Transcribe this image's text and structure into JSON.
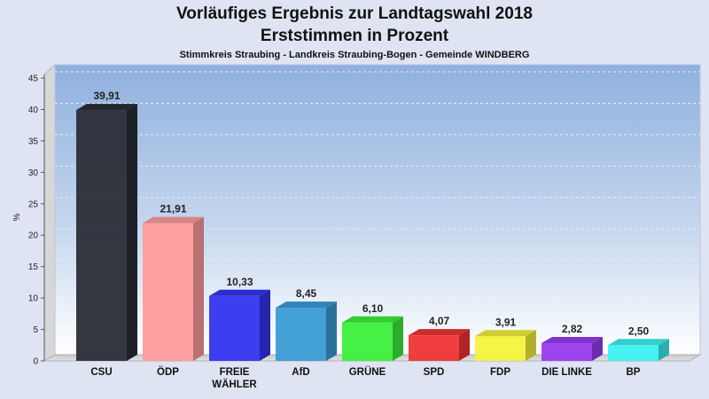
{
  "header": {
    "title_line1": "Vorläufiges Ergebnis zur Landtagswahl 2018",
    "title_line2": "Erststimmen in Prozent",
    "subtitle": "Stimmkreis Straubing - Landkreis Straubing-Bogen - Gemeinde WINDBERG"
  },
  "chart_data": {
    "type": "bar",
    "title": "Vorläufiges Ergebnis zur Landtagswahl 2018 Erststimmen in Prozent",
    "subtitle": "Stimmkreis Straubing - Landkreis Straubing-Bogen - Gemeinde WINDBERG",
    "ylabel": "%",
    "xlabel": "",
    "ylim": [
      0,
      45
    ],
    "yticks": [
      0,
      5,
      10,
      15,
      20,
      25,
      30,
      35,
      40,
      45
    ],
    "grid": true,
    "categories": [
      "CSU",
      "ÖDP",
      "FREIE WÄHLER",
      "AfD",
      "GRÜNE",
      "SPD",
      "FDP",
      "DIE LINKE",
      "BP"
    ],
    "category_label_lines": [
      [
        "CSU"
      ],
      [
        "ÖDP"
      ],
      [
        "FREIE",
        "WÄHLER"
      ],
      [
        "AfD"
      ],
      [
        "GRÜNE"
      ],
      [
        "SPD"
      ],
      [
        "FDP"
      ],
      [
        "DIE LINKE"
      ],
      [
        "BP"
      ]
    ],
    "values": [
      39.91,
      21.91,
      10.33,
      8.45,
      6.1,
      4.07,
      3.91,
      2.82,
      2.5
    ],
    "value_labels": [
      "39,91",
      "21,91",
      "10,33",
      "8,45",
      "6,10",
      "4,07",
      "3,91",
      "2,82",
      "2,50"
    ],
    "colors": [
      "#2a2d36",
      "#ff9b9b",
      "#3434f0",
      "#3a9cd6",
      "#3cf03c",
      "#f03434",
      "#f4f43c",
      "#9a3cf0",
      "#3cf2f2"
    ]
  }
}
